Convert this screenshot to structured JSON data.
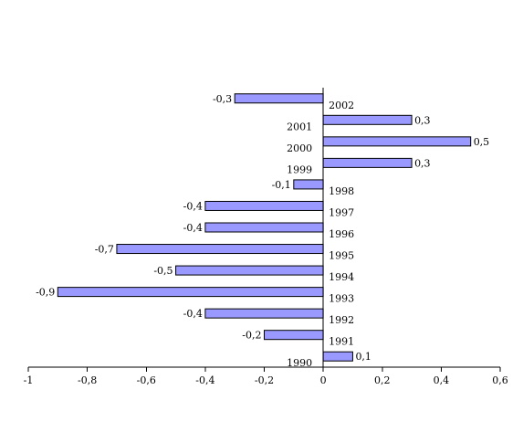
{
  "chart_data": {
    "type": "bar",
    "orientation": "horizontal",
    "categories": [
      "1990",
      "1991",
      "1992",
      "1993",
      "1994",
      "1995",
      "1996",
      "1997",
      "1998",
      "1999",
      "2000",
      "2001",
      "2002"
    ],
    "values": [
      0.1,
      -0.2,
      -0.4,
      -0.9,
      -0.5,
      -0.7,
      -0.4,
      -0.4,
      -0.1,
      0.3,
      0.5,
      0.3,
      -0.3
    ],
    "value_labels": [
      "0,1",
      "-0,2",
      "-0,4",
      "-0,9",
      "-0,5",
      "-0,7",
      "-0,4",
      "-0,4",
      "-0,1",
      "0,3",
      "0,5",
      "0,3",
      "-0,3"
    ],
    "xlim": [
      -1,
      0.6
    ],
    "x_ticks": [
      -1,
      -0.8,
      -0.6,
      -0.4,
      -0.2,
      0,
      0.2,
      0.4,
      0.6
    ],
    "x_tick_labels": [
      "-1",
      "-0,8",
      "-0,6",
      "-0,4",
      "-0,2",
      "0",
      "0,2",
      "0,4",
      "0,6"
    ],
    "title": "",
    "xlabel": "",
    "ylabel": "",
    "grid": false,
    "legend": "none",
    "bar_color": "#9999ff"
  }
}
